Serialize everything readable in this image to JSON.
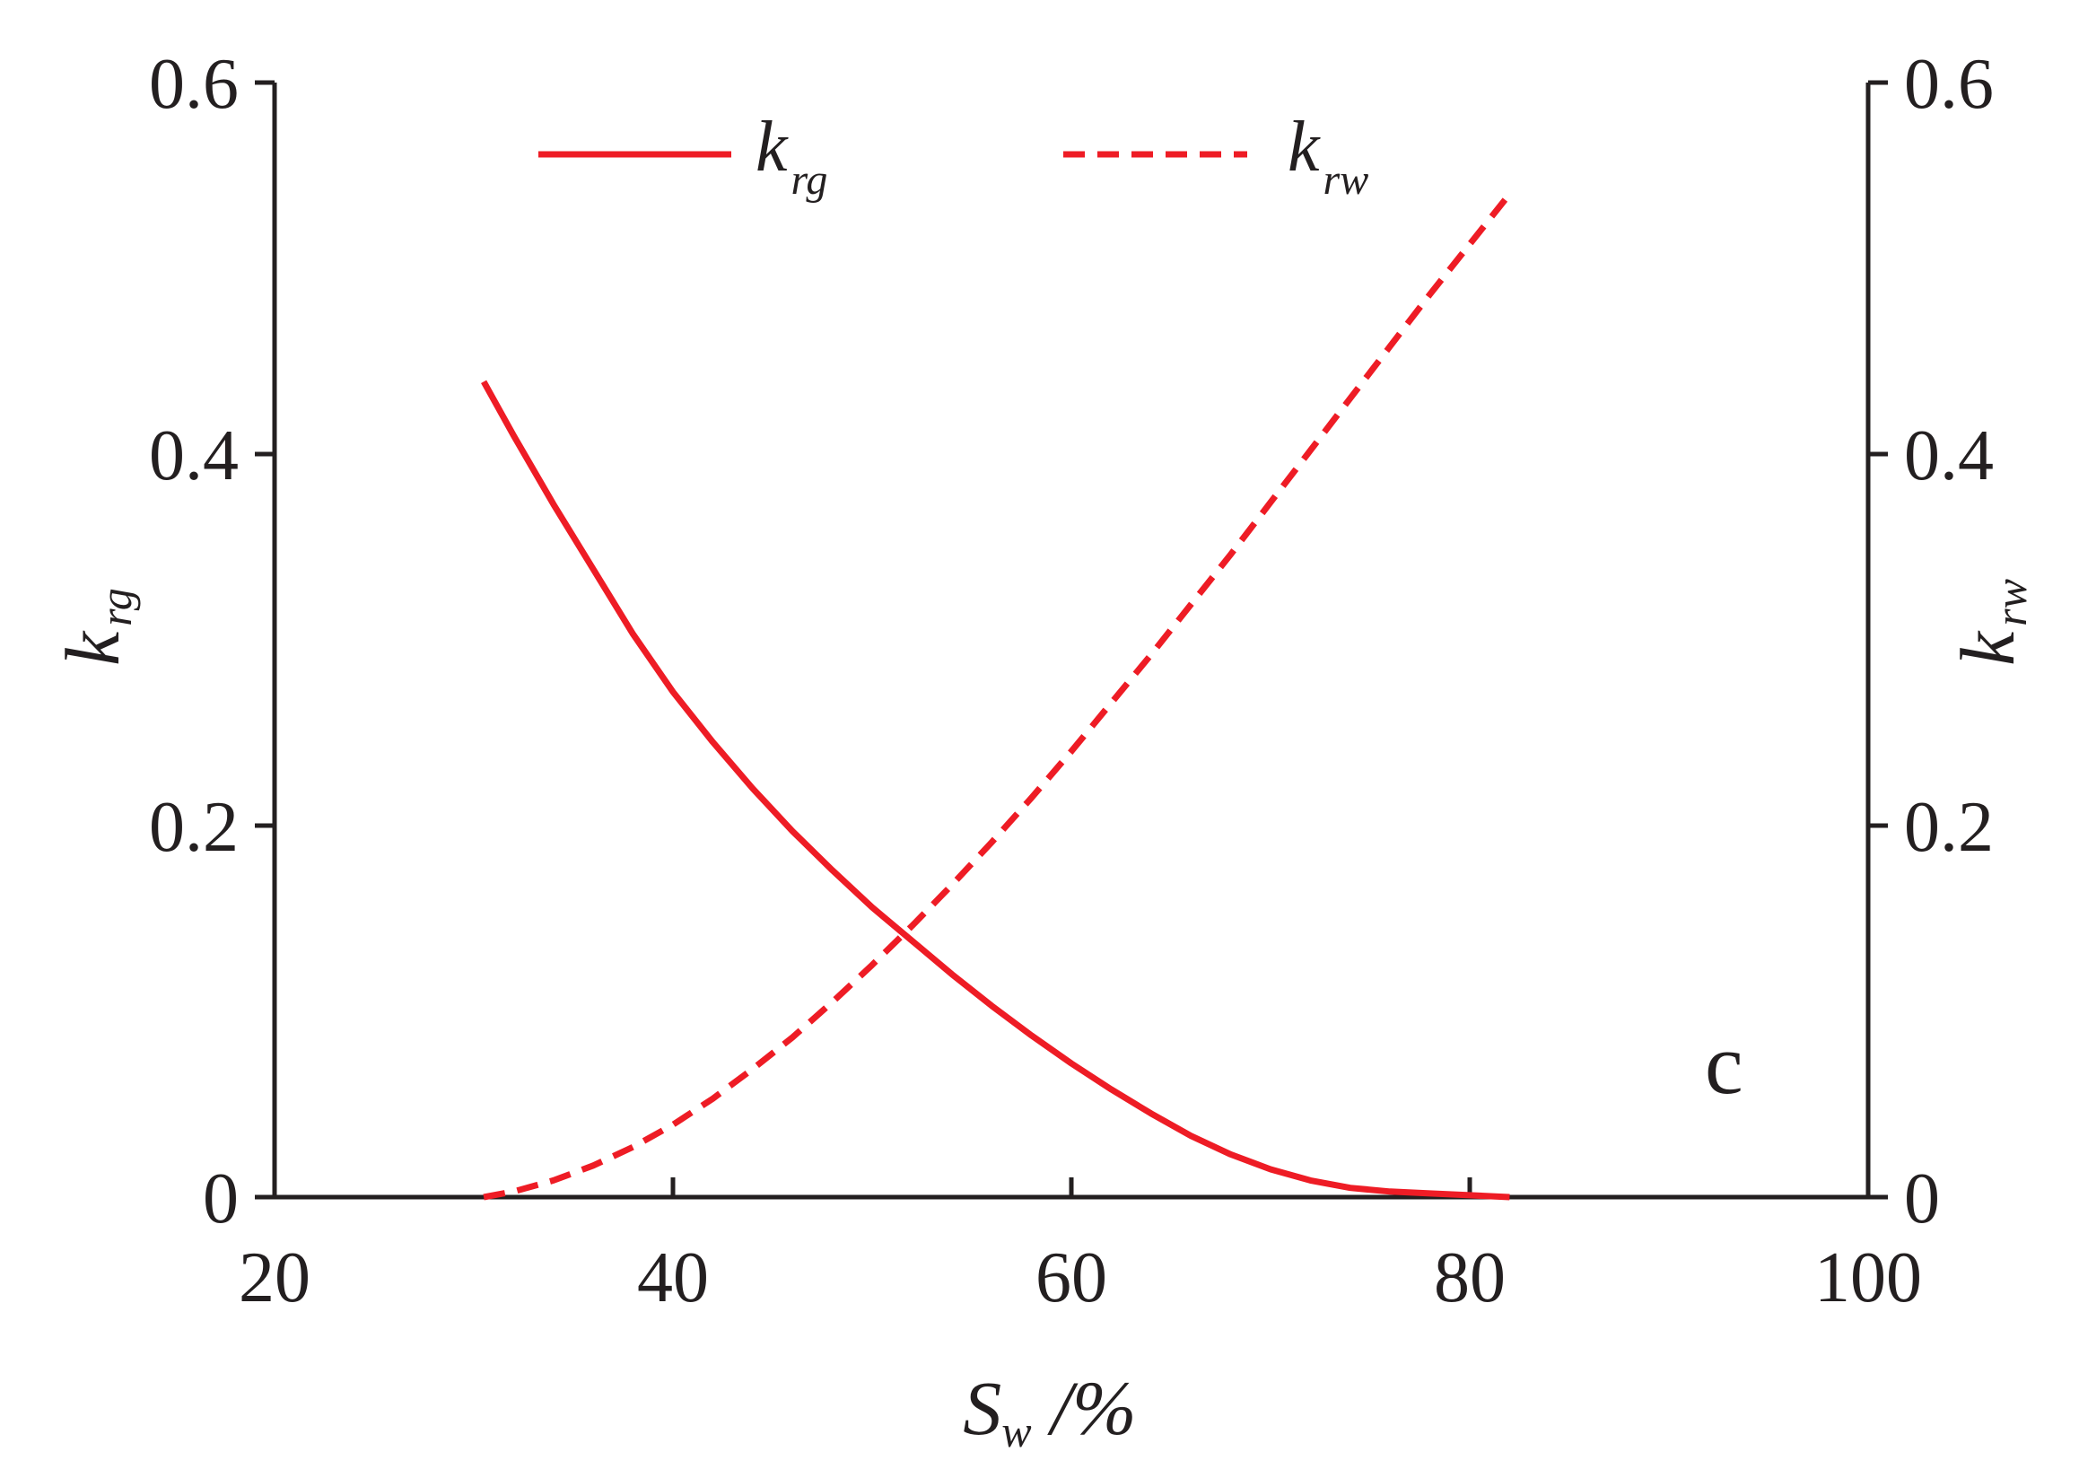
{
  "chart_data": {
    "type": "line",
    "panel_label": "c",
    "xlabel": {
      "main": "S",
      "sub": "w",
      "unit": " /%"
    },
    "ylabel_left": {
      "main": "k",
      "sub": "rg"
    },
    "ylabel_right": {
      "main": "k",
      "sub": "rw"
    },
    "xlim": [
      20,
      100
    ],
    "ylim_left": [
      0,
      0.6
    ],
    "ylim_right": [
      0,
      0.6
    ],
    "x_ticks": [
      "20",
      "40",
      "60",
      "80",
      "100"
    ],
    "x_tick_values": [
      20,
      40,
      60,
      80,
      100
    ],
    "y_ticks_left": [
      "0",
      "0.2",
      "0.4",
      "0.6"
    ],
    "y_ticks_right": [
      "0",
      "0.2",
      "0.4",
      "0.6"
    ],
    "y_tick_values": [
      0,
      0.2,
      0.4,
      0.6
    ],
    "grid": false,
    "legend_position": "top",
    "series": [
      {
        "name": {
          "main": "k",
          "sub": "rg"
        },
        "axis": "left",
        "style": "solid",
        "color": "#ee1c25",
        "x": [
          30.5,
          32,
          34,
          36,
          38,
          40,
          42,
          44,
          46,
          48,
          50,
          52,
          54,
          56,
          58,
          60,
          62,
          64,
          66,
          68,
          70,
          72,
          74,
          76,
          78,
          80,
          82
        ],
        "y": [
          0.439,
          0.41,
          0.373,
          0.338,
          0.303,
          0.272,
          0.245,
          0.22,
          0.197,
          0.176,
          0.156,
          0.138,
          0.12,
          0.103,
          0.087,
          0.072,
          0.058,
          0.045,
          0.033,
          0.023,
          0.015,
          0.009,
          0.005,
          0.003,
          0.002,
          0.001,
          0.0
        ]
      },
      {
        "name": {
          "main": "k",
          "sub": "rw"
        },
        "axis": "right",
        "style": "dashed",
        "color": "#ee1c25",
        "x": [
          30.5,
          32,
          34,
          36,
          38,
          40,
          42,
          44,
          46,
          48,
          50,
          52,
          54,
          56,
          58,
          60,
          62,
          64,
          66,
          68,
          70,
          72,
          74,
          76,
          78,
          80,
          82
        ],
        "y": [
          0.0,
          0.003,
          0.009,
          0.017,
          0.027,
          0.039,
          0.053,
          0.069,
          0.086,
          0.105,
          0.125,
          0.146,
          0.168,
          0.191,
          0.215,
          0.24,
          0.266,
          0.292,
          0.319,
          0.346,
          0.374,
          0.402,
          0.43,
          0.458,
          0.486,
          0.513,
          0.54
        ]
      }
    ]
  }
}
